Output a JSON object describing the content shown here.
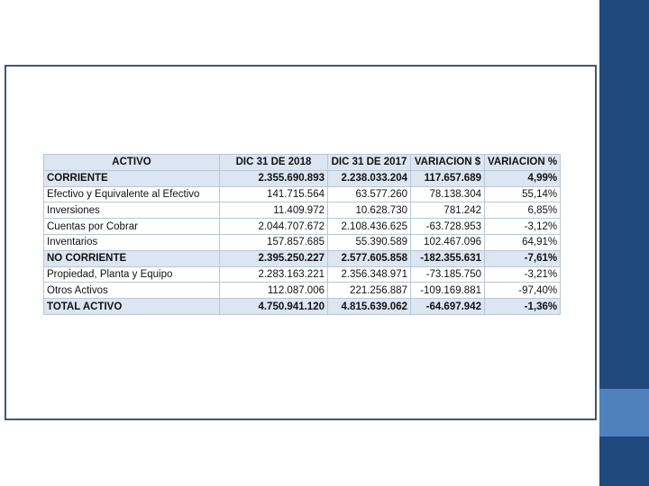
{
  "table": {
    "header": [
      "ACTIVO",
      "DIC 31 DE 2018",
      "DIC 31 DE 2017",
      "VARIACION $",
      "VARIACION %"
    ],
    "rows": [
      [
        "CORRIENTE",
        "2.355.690.893",
        "2.238.033.204",
        "117.657.689",
        "4,99%"
      ],
      [
        "Efectivo y Equivalente al Efectivo",
        "141.715.564",
        "63.577.260",
        "78.138.304",
        "55,14%"
      ],
      [
        "Inversiones",
        "11.409.972",
        "10.628.730",
        "781.242",
        "6,85%"
      ],
      [
        "Cuentas por Cobrar",
        "2.044.707.672",
        "2.108.436.625",
        "-63.728.953",
        "-3,12%"
      ],
      [
        "Inventarios",
        "157.857.685",
        "55.390.589",
        "102.467.096",
        "64,91%"
      ],
      [
        "NO CORRIENTE",
        "2.395.250.227",
        "2.577.605.858",
        "-182.355.631",
        "-7,61%"
      ],
      [
        "Propiedad, Planta y Equipo",
        "2.283.163.221",
        "2.356.348.971",
        "-73.185.750",
        "-3,21%"
      ],
      [
        "Otros Activos",
        "112.087.006",
        "221.256.887",
        "-109.169.881",
        "-97,40%"
      ],
      [
        "TOTAL ACTIVO",
        "4.750.941.120",
        "4.815.639.062",
        "-64.697.942",
        "-1,36%"
      ]
    ],
    "bold_rows": [
      0,
      5,
      8
    ]
  }
}
